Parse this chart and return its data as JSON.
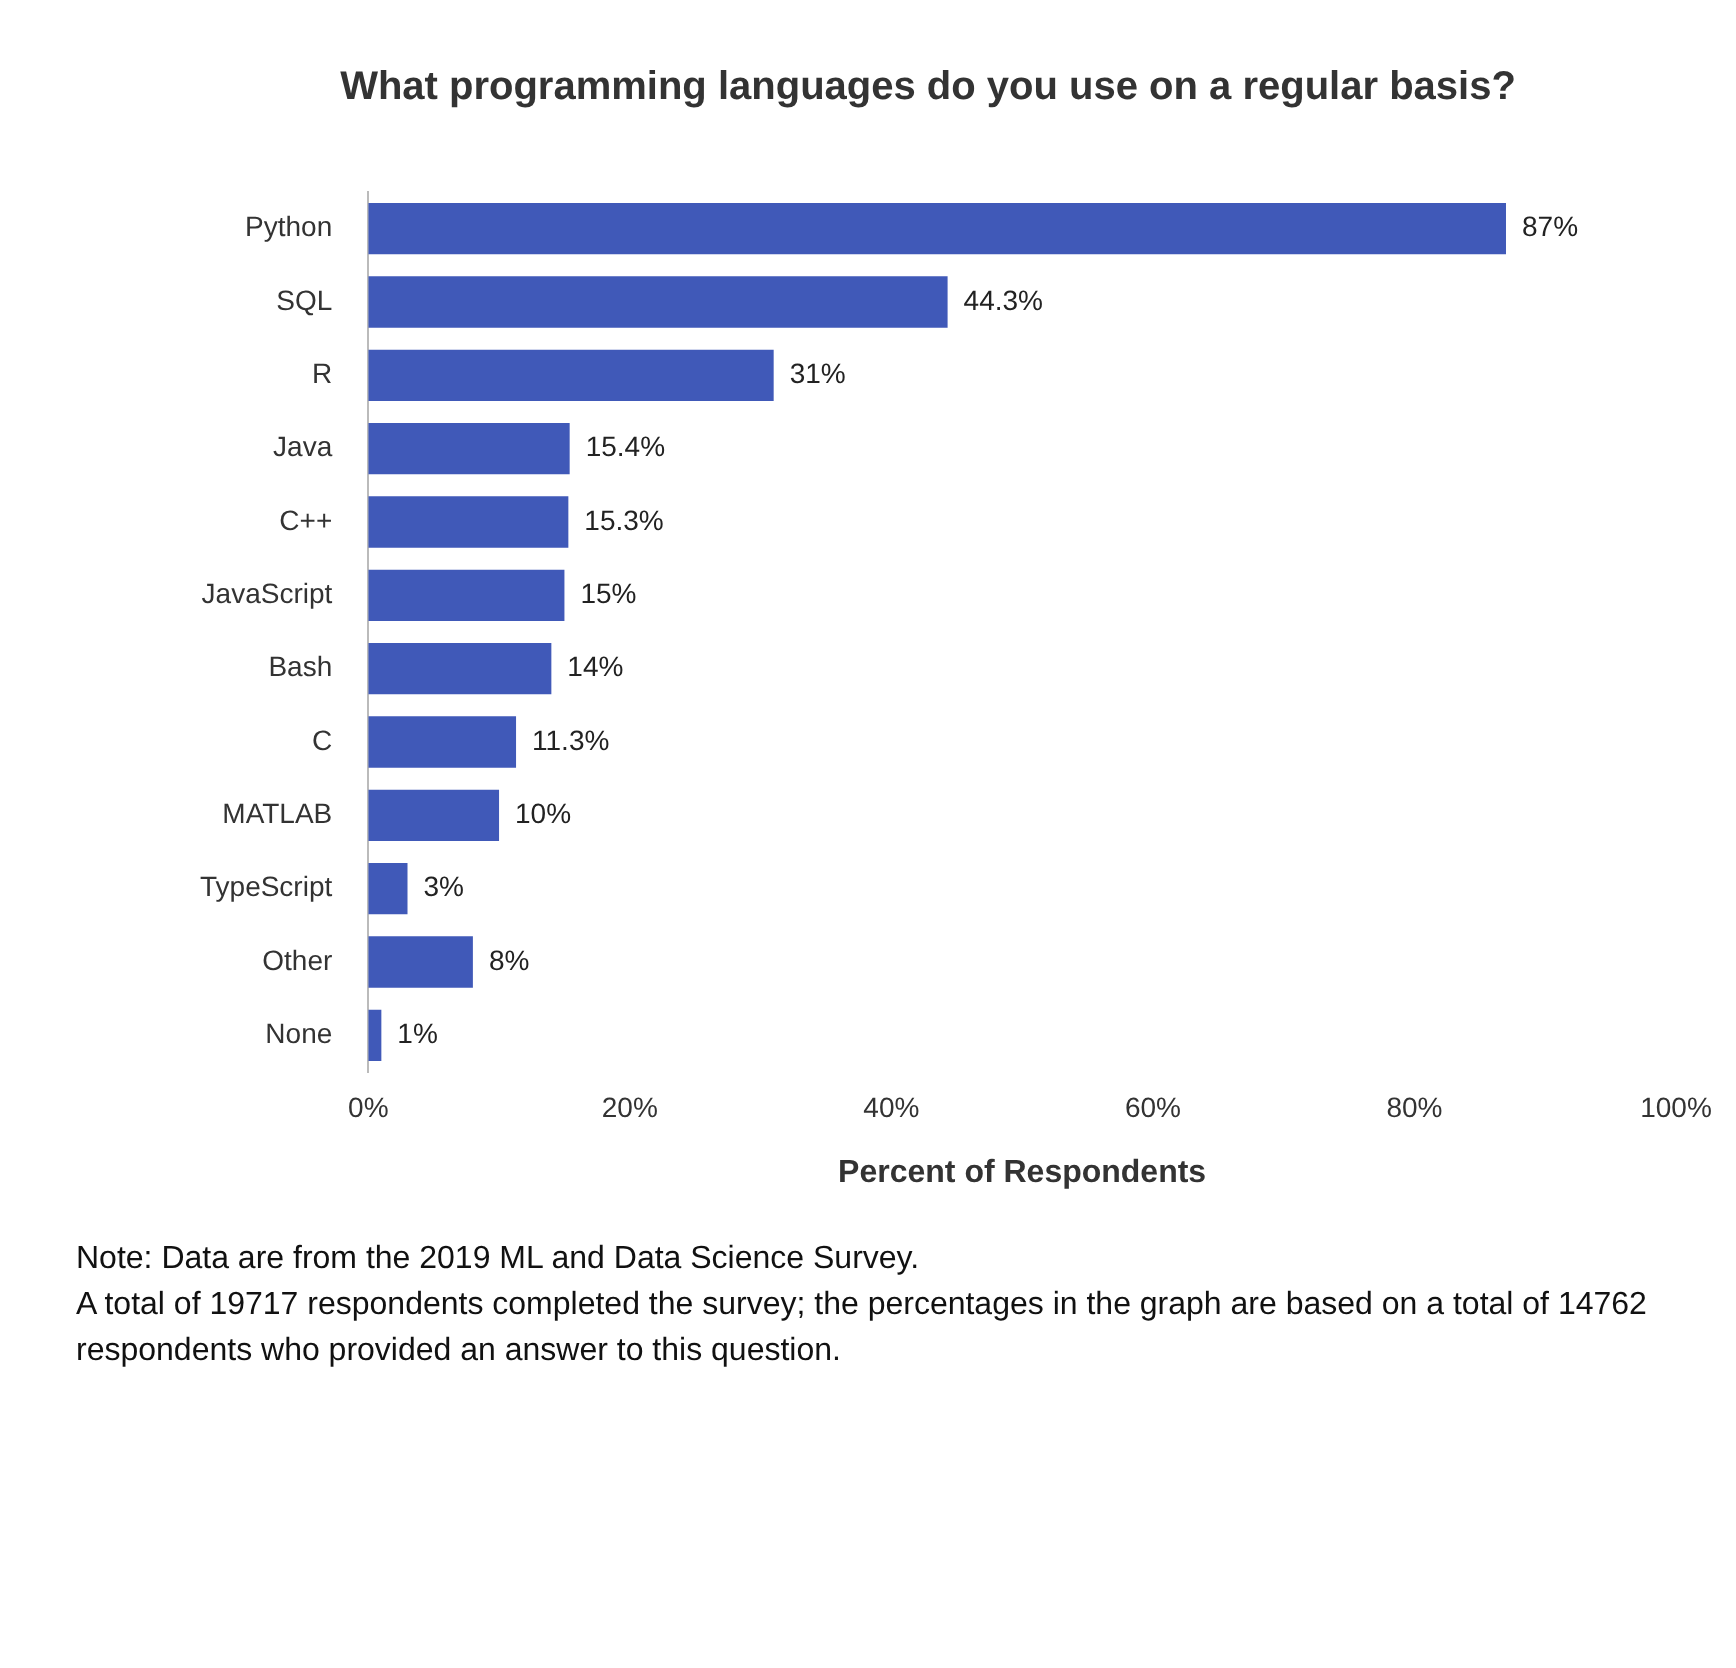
{
  "chart_data": {
    "type": "bar",
    "orientation": "horizontal",
    "title": "What programming languages do you use on a regular basis?",
    "categories": [
      "Python",
      "SQL",
      "R",
      "Java",
      "C++",
      "JavaScript",
      "Bash",
      "C",
      "MATLAB",
      "TypeScript",
      "Other",
      "None"
    ],
    "values": [
      87,
      44.3,
      31,
      15.4,
      15.3,
      15,
      14,
      11.3,
      10,
      3,
      8,
      1
    ],
    "value_labels": [
      "87%",
      "44.3%",
      "31%",
      "15.4%",
      "15.3%",
      "15%",
      "14%",
      "11.3%",
      "10%",
      "3%",
      "8%",
      "1%"
    ],
    "color": "#4059b8",
    "xlim": [
      0,
      100
    ],
    "xticks": [
      {
        "value": 0,
        "label": "0%"
      },
      {
        "value": 20,
        "label": "20%"
      },
      {
        "value": 40,
        "label": "40%"
      },
      {
        "value": 60,
        "label": "60%"
      },
      {
        "value": 80,
        "label": "80%"
      },
      {
        "value": 100,
        "label": "100%"
      }
    ],
    "xlabel": "Percent of Respondents",
    "grid": false,
    "legend": false,
    "annotations": [
      "Note: Data are from the 2019 ML and Data Science Survey.",
      "A total of 19717 respondents completed the survey; the percentages in the graph are based on a total of 14762 respondents who provided an answer to this question."
    ]
  }
}
